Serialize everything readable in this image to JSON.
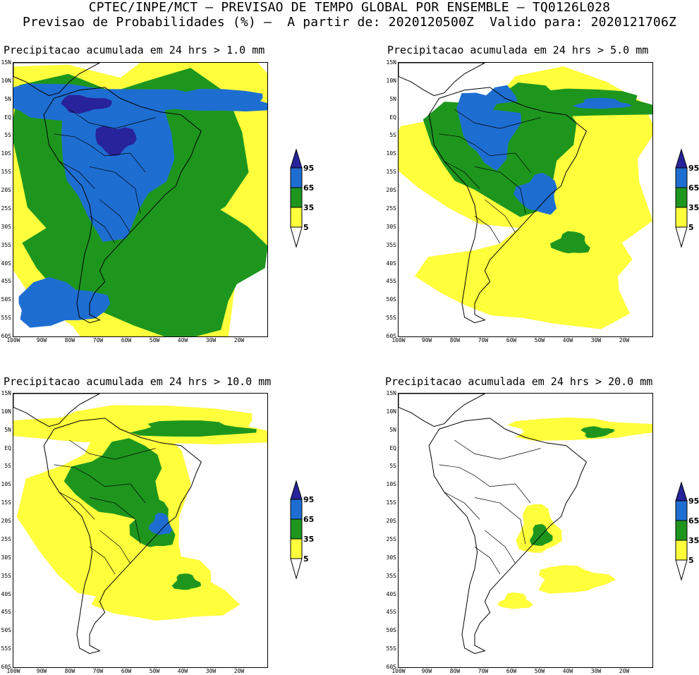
{
  "header": {
    "line1": "CPTEC/INPE/MCT – PREVISAO DE TEMPO GLOBAL POR ENSEMBLE – TQ0126L028",
    "line2": "Previsao de Probabilidades (%) –  A partir de: 2020120500Z  Valido para: 2020121706Z"
  },
  "colors": {
    "yellow": "#ffff3c",
    "green": "#1e961e",
    "blue": "#1e6ed2",
    "navy": "#28239b",
    "land_outline": "#000000"
  },
  "lat_ticks": [
    "15N",
    "10N",
    "5N",
    "EQ",
    "5S",
    "10S",
    "15S",
    "20S",
    "25S",
    "30S",
    "35S",
    "40S",
    "45S",
    "50S",
    "55S",
    "60S"
  ],
  "lon_ticks": [
    "100W",
    "90W",
    "80W",
    "70W",
    "60W",
    "50W",
    "40W",
    "30W",
    "20W"
  ],
  "legend": {
    "labels": [
      "95",
      "65",
      "35",
      "5"
    ],
    "colors": [
      "#28239b",
      "#1e6ed2",
      "#1e961e",
      "#ffff3c"
    ]
  },
  "panels": [
    {
      "title": "Precipitacao acumulada em 24 hrs > 1.0 mm"
    },
    {
      "title": "Precipitacao acumulada em 24 hrs > 5.0 mm"
    },
    {
      "title": "Precipitacao acumulada em 24 hrs > 10.0 mm"
    },
    {
      "title": "Precipitacao acumulada em 24 hrs > 20.0 mm"
    }
  ]
}
